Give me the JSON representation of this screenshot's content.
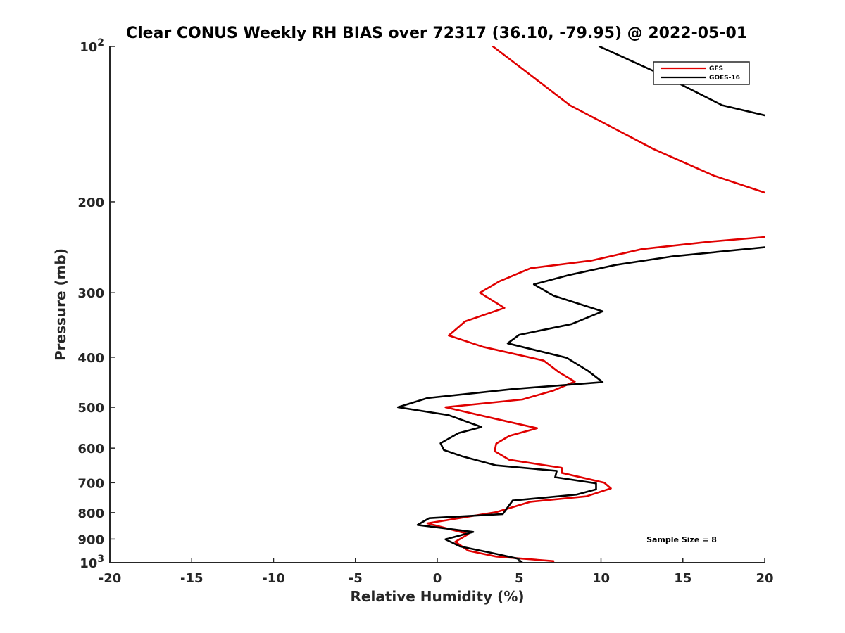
{
  "chart_data": {
    "type": "line",
    "title": "Clear CONUS Weekly RH BIAS over 72317 (36.10, -79.95) @ 2022-05-01",
    "xlabel": "Relative Humidity (%)",
    "ylabel": "Pressure (mb)",
    "xlim": [
      -20,
      20
    ],
    "ylim": [
      100,
      1000
    ],
    "y_scale": "log",
    "y_reversed": true,
    "grid": false,
    "legend_position": "top-right",
    "x_ticks": [
      "-20",
      "-15",
      "-10",
      "-5",
      "0",
      "5",
      "10",
      "15",
      "20"
    ],
    "y_ticks": [
      {
        "value": 100,
        "base": "10",
        "exp": "2"
      },
      {
        "value": 200,
        "base": "200",
        "exp": ""
      },
      {
        "value": 300,
        "base": "300",
        "exp": ""
      },
      {
        "value": 400,
        "base": "400",
        "exp": ""
      },
      {
        "value": 500,
        "base": "500",
        "exp": ""
      },
      {
        "value": 600,
        "base": "600",
        "exp": ""
      },
      {
        "value": 700,
        "base": "700",
        "exp": ""
      },
      {
        "value": 800,
        "base": "800",
        "exp": ""
      },
      {
        "value": 900,
        "base": "900",
        "exp": ""
      },
      {
        "value": 1000,
        "base": "10",
        "exp": "3"
      }
    ],
    "annotation": "Sample Size = 8",
    "series": [
      {
        "name": "GFS",
        "color": "#e00000",
        "segments": [
          [
            {
              "x": 3.4,
              "y": 100
            },
            {
              "x": 5.6,
              "y": 113
            },
            {
              "x": 8.1,
              "y": 130
            },
            {
              "x": 13.2,
              "y": 158
            },
            {
              "x": 16.9,
              "y": 178
            },
            {
              "x": 20.0,
              "y": 192
            }
          ],
          [
            {
              "x": 20.0,
              "y": 234
            },
            {
              "x": 16.6,
              "y": 239
            },
            {
              "x": 12.5,
              "y": 247
            },
            {
              "x": 9.4,
              "y": 260
            },
            {
              "x": 5.7,
              "y": 269
            },
            {
              "x": 3.8,
              "y": 285
            },
            {
              "x": 2.6,
              "y": 300
            },
            {
              "x": 4.1,
              "y": 321
            },
            {
              "x": 1.7,
              "y": 341
            },
            {
              "x": 0.7,
              "y": 363
            },
            {
              "x": 2.8,
              "y": 382
            },
            {
              "x": 6.5,
              "y": 406
            },
            {
              "x": 7.4,
              "y": 427
            },
            {
              "x": 8.4,
              "y": 446
            },
            {
              "x": 7.1,
              "y": 464
            },
            {
              "x": 5.2,
              "y": 483
            },
            {
              "x": 0.5,
              "y": 500
            },
            {
              "x": 3.5,
              "y": 526
            },
            {
              "x": 6.1,
              "y": 549
            },
            {
              "x": 4.4,
              "y": 568
            },
            {
              "x": 3.6,
              "y": 588
            },
            {
              "x": 3.5,
              "y": 608
            },
            {
              "x": 4.4,
              "y": 632
            },
            {
              "x": 7.6,
              "y": 655
            },
            {
              "x": 7.6,
              "y": 670
            },
            {
              "x": 10.2,
              "y": 700
            },
            {
              "x": 10.6,
              "y": 718
            },
            {
              "x": 9.1,
              "y": 744
            },
            {
              "x": 5.7,
              "y": 762
            },
            {
              "x": 3.6,
              "y": 798
            },
            {
              "x": -0.6,
              "y": 839
            },
            {
              "x": 1.9,
              "y": 880
            },
            {
              "x": 1.1,
              "y": 911
            },
            {
              "x": 1.9,
              "y": 948
            },
            {
              "x": 3.6,
              "y": 973
            },
            {
              "x": 7.1,
              "y": 993
            }
          ]
        ]
      },
      {
        "name": "GOES-16",
        "color": "#000000",
        "segments": [
          [
            {
              "x": 9.9,
              "y": 100
            },
            {
              "x": 13.6,
              "y": 113
            },
            {
              "x": 17.4,
              "y": 130
            },
            {
              "x": 20.0,
              "y": 136
            }
          ],
          [
            {
              "x": 20.0,
              "y": 245
            },
            {
              "x": 14.4,
              "y": 255
            },
            {
              "x": 10.9,
              "y": 265
            },
            {
              "x": 8.1,
              "y": 277
            },
            {
              "x": 5.9,
              "y": 289
            },
            {
              "x": 7.1,
              "y": 304
            },
            {
              "x": 10.1,
              "y": 326
            },
            {
              "x": 8.2,
              "y": 345
            },
            {
              "x": 5.0,
              "y": 362
            },
            {
              "x": 4.3,
              "y": 376
            },
            {
              "x": 7.9,
              "y": 401
            },
            {
              "x": 9.2,
              "y": 425
            },
            {
              "x": 10.1,
              "y": 447
            },
            {
              "x": 4.6,
              "y": 461
            },
            {
              "x": -0.6,
              "y": 480
            },
            {
              "x": -2.4,
              "y": 500
            },
            {
              "x": 0.7,
              "y": 518
            },
            {
              "x": 2.7,
              "y": 546
            },
            {
              "x": 1.3,
              "y": 561
            },
            {
              "x": 0.2,
              "y": 587
            },
            {
              "x": 0.4,
              "y": 605
            },
            {
              "x": 1.5,
              "y": 622
            },
            {
              "x": 3.6,
              "y": 648
            },
            {
              "x": 7.3,
              "y": 664
            },
            {
              "x": 7.2,
              "y": 683
            },
            {
              "x": 9.7,
              "y": 702
            },
            {
              "x": 9.7,
              "y": 721
            },
            {
              "x": 8.5,
              "y": 738
            },
            {
              "x": 4.6,
              "y": 758
            },
            {
              "x": 4.0,
              "y": 805
            },
            {
              "x": -0.5,
              "y": 820
            },
            {
              "x": -1.2,
              "y": 845
            },
            {
              "x": 2.2,
              "y": 872
            },
            {
              "x": 0.5,
              "y": 901
            },
            {
              "x": 1.4,
              "y": 930
            },
            {
              "x": 3.3,
              "y": 957
            },
            {
              "x": 4.9,
              "y": 982
            },
            {
              "x": 5.2,
              "y": 1000
            }
          ]
        ]
      }
    ]
  }
}
